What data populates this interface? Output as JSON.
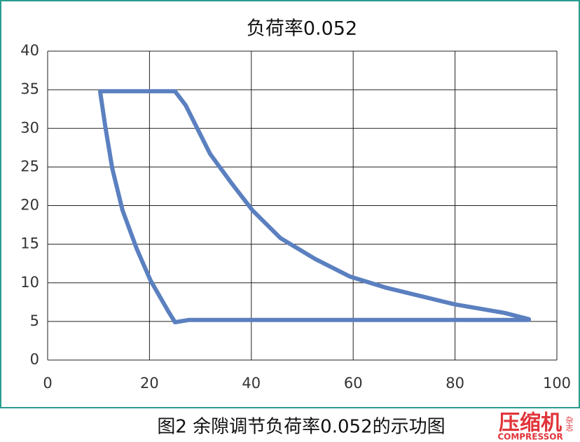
{
  "chart_data": {
    "type": "line",
    "title": "负荷率0.052",
    "series": [
      {
        "color": "#5b80c0",
        "x": [
          10.3,
          25,
          27.1,
          31.9,
          36,
          40.2,
          45.7,
          52.5,
          59.4,
          66.3,
          80,
          89.7,
          94.5,
          94.5,
          27.8,
          25,
          23.7,
          20.2,
          17.5,
          14.7,
          12.7,
          11.3,
          10.3
        ],
        "values": [
          34.8,
          34.8,
          33,
          26.7,
          23,
          19.4,
          15.8,
          13.1,
          10.8,
          9.4,
          7.2,
          6.1,
          5.3,
          5.2,
          5.2,
          4.9,
          6.3,
          10.3,
          14.4,
          19.4,
          24.8,
          30.3,
          34.8
        ]
      }
    ],
    "xlim": [
      0,
      100
    ],
    "xticks": [
      0,
      20,
      40,
      60,
      80,
      100
    ],
    "ylim": [
      0,
      40
    ],
    "yticks": [
      0,
      5,
      10,
      15,
      20,
      25,
      30,
      35,
      40
    ],
    "grid": true
  },
  "caption": "图2 余隙调节负荷率0.052的示功图",
  "logo": {
    "main": "压缩机",
    "side": "杂志",
    "sub": "COMPRESSOR"
  }
}
